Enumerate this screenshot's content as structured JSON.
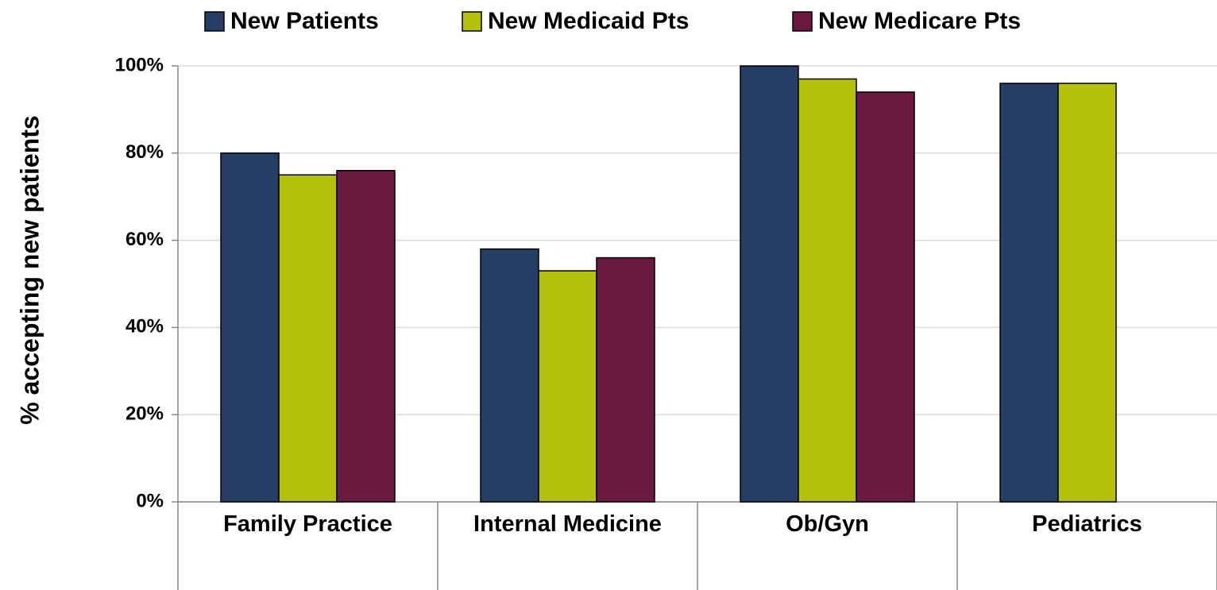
{
  "chart_data": {
    "type": "bar",
    "y_label": "% accepting new patients",
    "categories": [
      "Family Practice",
      "Internal Medicine",
      "Ob/Gyn",
      "Pediatrics"
    ],
    "series": [
      {
        "name": "New Patients",
        "color": "#263d66",
        "values": [
          80,
          58,
          100,
          96
        ]
      },
      {
        "name": "New Medicaid Pts",
        "color": "#b5c00c",
        "values": [
          75,
          53,
          97,
          96
        ]
      },
      {
        "name": "New Medicare Pts",
        "color": "#6a1a40",
        "values": [
          76,
          56,
          94,
          null
        ]
      }
    ],
    "ylim": [
      0,
      100
    ],
    "yticks": [
      {
        "value": 0,
        "label": "0%"
      },
      {
        "value": 20,
        "label": "20%"
      },
      {
        "value": 40,
        "label": "40%"
      },
      {
        "value": 60,
        "label": "60%"
      },
      {
        "value": 80,
        "label": "80%"
      },
      {
        "value": 100,
        "label": "100%"
      }
    ],
    "grid": true,
    "legend": "top"
  }
}
